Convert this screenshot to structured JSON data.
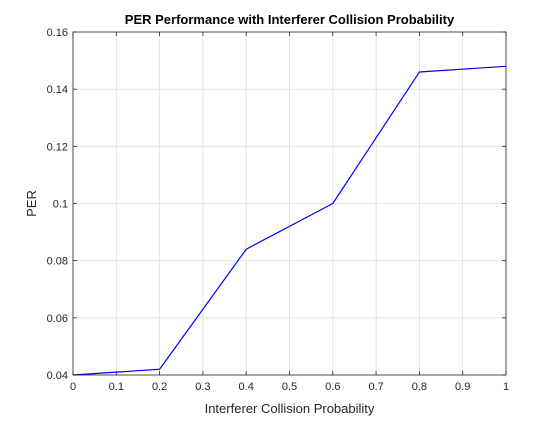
{
  "chart_data": {
    "type": "line",
    "title": "PER Performance with Interferer Collision Probability",
    "xlabel": "Interferer Collision Probability",
    "ylabel": "PER",
    "xlim": [
      0,
      1
    ],
    "ylim": [
      0.04,
      0.16
    ],
    "x_ticks": [
      "0",
      "0.1",
      "0.2",
      "0.3",
      "0.4",
      "0.5",
      "0.6",
      "0.7",
      "0.8",
      "0.9",
      "1"
    ],
    "y_ticks": [
      "0.04",
      "0.06",
      "0.08",
      "0.1",
      "0.12",
      "0.14",
      "0.16"
    ],
    "grid": true,
    "series": [
      {
        "color": "#0000ff",
        "x": [
          0,
          0.1,
          0.2,
          0.4,
          0.6,
          0.8,
          1.0
        ],
        "y": [
          0.04,
          0.041,
          0.042,
          0.084,
          0.1,
          0.146,
          0.148
        ]
      }
    ]
  }
}
